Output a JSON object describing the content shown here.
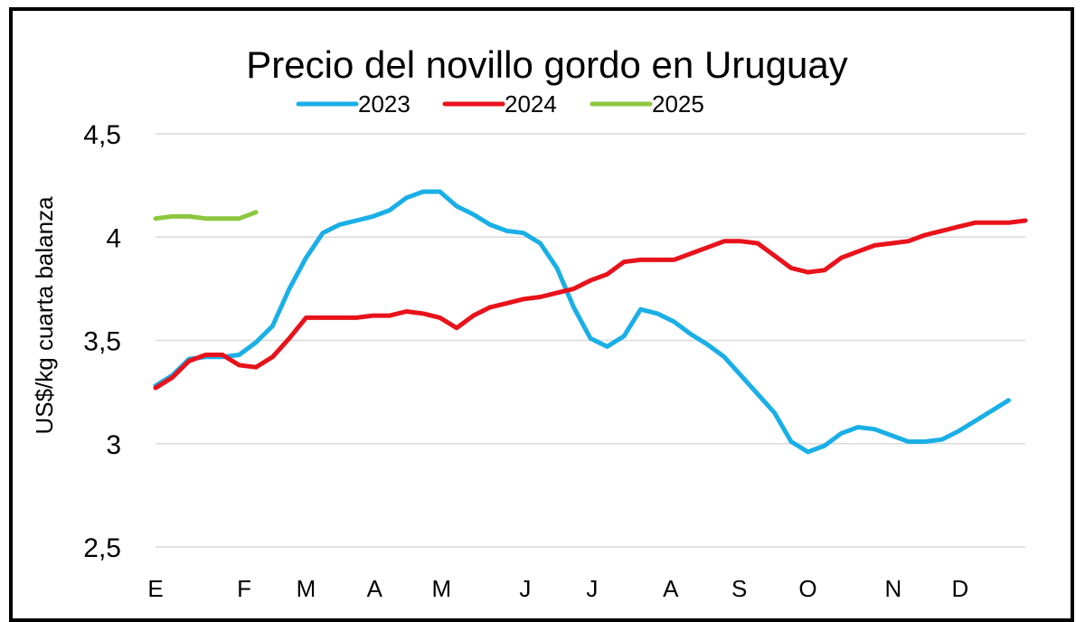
{
  "chart_data": {
    "type": "line",
    "title": "Precio del novillo gordo en Uruguay",
    "xlabel": "",
    "ylabel": "US$/kg cuarta balanza",
    "ylim": [
      2.5,
      4.5
    ],
    "yticks": [
      "2,5",
      "3",
      "3,5",
      "4",
      "4,5"
    ],
    "ytick_values": [
      2.5,
      3.0,
      3.5,
      4.0,
      4.5
    ],
    "grid": "horizontal",
    "legend_position": "top",
    "x_unit": "week",
    "x_range": [
      1,
      53
    ],
    "month_ticks": [
      {
        "label": "E",
        "x": 1
      },
      {
        "label": "F",
        "x": 6.3
      },
      {
        "label": "M",
        "x": 10
      },
      {
        "label": "A",
        "x": 14.1
      },
      {
        "label": "M",
        "x": 18.1
      },
      {
        "label": "J",
        "x": 23.1
      },
      {
        "label": "J",
        "x": 27.1
      },
      {
        "label": "A",
        "x": 31.8
      },
      {
        "label": "S",
        "x": 35.9
      },
      {
        "label": "O",
        "x": 40
      },
      {
        "label": "N",
        "x": 45.1
      },
      {
        "label": "D",
        "x": 49.1
      }
    ],
    "series": [
      {
        "name": "2023",
        "color": "#1aafe6",
        "points": [
          [
            1,
            3.28
          ],
          [
            2,
            3.33
          ],
          [
            3,
            3.41
          ],
          [
            4,
            3.42
          ],
          [
            5,
            3.42
          ],
          [
            6,
            3.43
          ],
          [
            7,
            3.49
          ],
          [
            8,
            3.57
          ],
          [
            9,
            3.75
          ],
          [
            10,
            3.9
          ],
          [
            11,
            4.02
          ],
          [
            12,
            4.06
          ],
          [
            13,
            4.08
          ],
          [
            14,
            4.1
          ],
          [
            15,
            4.13
          ],
          [
            16,
            4.19
          ],
          [
            17,
            4.22
          ],
          [
            18,
            4.22
          ],
          [
            19,
            4.15
          ],
          [
            20,
            4.11
          ],
          [
            21,
            4.06
          ],
          [
            22,
            4.03
          ],
          [
            23,
            4.02
          ],
          [
            24,
            3.97
          ],
          [
            25,
            3.85
          ],
          [
            26,
            3.66
          ],
          [
            27,
            3.51
          ],
          [
            28,
            3.47
          ],
          [
            29,
            3.52
          ],
          [
            30,
            3.65
          ],
          [
            31,
            3.63
          ],
          [
            32,
            3.59
          ],
          [
            33,
            3.53
          ],
          [
            34,
            3.48
          ],
          [
            35,
            3.42
          ],
          [
            36,
            3.33
          ],
          [
            37,
            3.24
          ],
          [
            38,
            3.15
          ],
          [
            39,
            3.01
          ],
          [
            40,
            2.96
          ],
          [
            41,
            2.99
          ],
          [
            42,
            3.05
          ],
          [
            43,
            3.08
          ],
          [
            44,
            3.07
          ],
          [
            45,
            3.04
          ],
          [
            46,
            3.01
          ],
          [
            47,
            3.01
          ],
          [
            48,
            3.02
          ],
          [
            49,
            3.06
          ],
          [
            50,
            3.11
          ],
          [
            51,
            3.16
          ],
          [
            52,
            3.21
          ]
        ]
      },
      {
        "name": "2024",
        "color": "#e8121b",
        "points": [
          [
            1,
            3.27
          ],
          [
            2,
            3.32
          ],
          [
            3,
            3.4
          ],
          [
            4,
            3.43
          ],
          [
            5,
            3.43
          ],
          [
            6,
            3.38
          ],
          [
            7,
            3.37
          ],
          [
            8,
            3.42
          ],
          [
            9,
            3.51
          ],
          [
            10,
            3.61
          ],
          [
            11,
            3.61
          ],
          [
            12,
            3.61
          ],
          [
            13,
            3.61
          ],
          [
            14,
            3.62
          ],
          [
            15,
            3.62
          ],
          [
            16,
            3.64
          ],
          [
            17,
            3.63
          ],
          [
            18,
            3.61
          ],
          [
            19,
            3.56
          ],
          [
            20,
            3.62
          ],
          [
            21,
            3.66
          ],
          [
            22,
            3.68
          ],
          [
            23,
            3.7
          ],
          [
            24,
            3.71
          ],
          [
            25,
            3.73
          ],
          [
            26,
            3.75
          ],
          [
            27,
            3.79
          ],
          [
            28,
            3.82
          ],
          [
            29,
            3.88
          ],
          [
            30,
            3.89
          ],
          [
            31,
            3.89
          ],
          [
            32,
            3.89
          ],
          [
            33,
            3.92
          ],
          [
            34,
            3.95
          ],
          [
            35,
            3.98
          ],
          [
            36,
            3.98
          ],
          [
            37,
            3.97
          ],
          [
            38,
            3.91
          ],
          [
            39,
            3.85
          ],
          [
            40,
            3.83
          ],
          [
            41,
            3.84
          ],
          [
            42,
            3.9
          ],
          [
            43,
            3.93
          ],
          [
            44,
            3.96
          ],
          [
            45,
            3.97
          ],
          [
            46,
            3.98
          ],
          [
            47,
            4.01
          ],
          [
            48,
            4.03
          ],
          [
            49,
            4.05
          ],
          [
            50,
            4.07
          ],
          [
            51,
            4.07
          ],
          [
            52,
            4.07
          ],
          [
            53,
            4.08
          ]
        ]
      },
      {
        "name": "2025",
        "color": "#8cc63f",
        "points": [
          [
            1,
            4.09
          ],
          [
            2,
            4.1
          ],
          [
            3,
            4.1
          ],
          [
            4,
            4.09
          ],
          [
            5,
            4.09
          ],
          [
            6,
            4.09
          ],
          [
            7,
            4.12
          ]
        ]
      }
    ]
  }
}
